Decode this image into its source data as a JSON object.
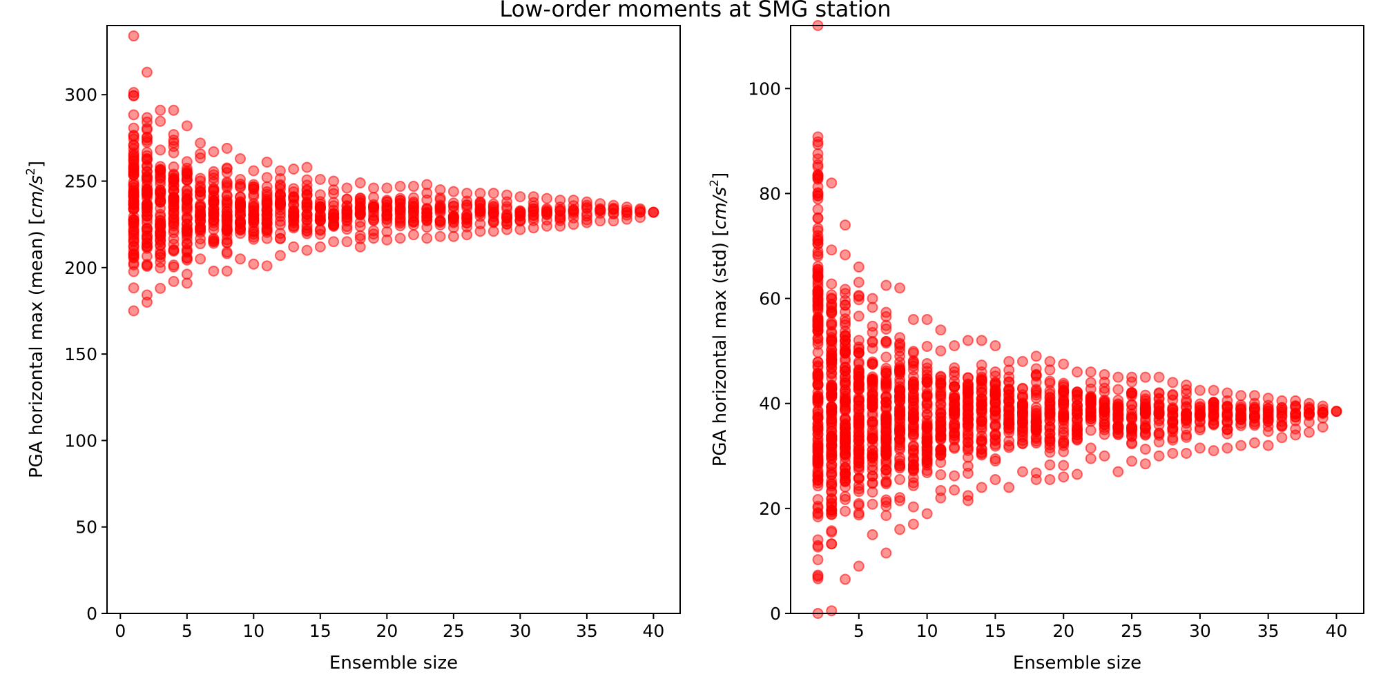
{
  "figure": {
    "title": "Low-order moments at SMG station",
    "colors": {
      "marker": "#ff0000",
      "axes": "#000000",
      "background": "#ffffff"
    }
  },
  "chart_data": [
    {
      "type": "scatter",
      "title": "",
      "xlabel": "Ensemble size",
      "ylabel": "PGA horizontal max (mean) [cm/s²]",
      "ylabel_parts": {
        "main": "PGA horizontal max (mean) [",
        "unit": "cm/s",
        "sup": "2",
        "close": "]"
      },
      "xlim": [
        -1,
        42
      ],
      "ylim": [
        0,
        340
      ],
      "x_ticks": [
        0,
        5,
        10,
        15,
        20,
        25,
        30,
        35,
        40
      ],
      "x_tick_labels": [
        "0",
        "5",
        "10",
        "15",
        "20",
        "25",
        "30",
        "35",
        "40"
      ],
      "y_ticks": [
        0,
        50,
        100,
        150,
        200,
        250,
        300
      ],
      "y_tick_labels": [
        "0",
        "50",
        "100",
        "150",
        "200",
        "250",
        "300"
      ],
      "grid": false,
      "legend": "none",
      "series": [
        {
          "marker_color": "#ff0000",
          "marker_alpha": 0.45,
          "x_range": [
            1,
            40
          ],
          "center": 232,
          "spread_by_x": [
            [
              1,
              175,
              334
            ],
            [
              2,
              180,
              313
            ],
            [
              3,
              188,
              291
            ],
            [
              4,
              192,
              291
            ],
            [
              5,
              191,
              282
            ],
            [
              6,
              205,
              272
            ],
            [
              7,
              198,
              267
            ],
            [
              8,
              198,
              269
            ],
            [
              9,
              205,
              263
            ],
            [
              10,
              202,
              256
            ],
            [
              11,
              201,
              261
            ],
            [
              12,
              207,
              256
            ],
            [
              13,
              212,
              257
            ],
            [
              14,
              210,
              258
            ],
            [
              15,
              212,
              251
            ],
            [
              16,
              215,
              250
            ],
            [
              17,
              215,
              246
            ],
            [
              18,
              212,
              249
            ],
            [
              19,
              217,
              246
            ],
            [
              20,
              216,
              246
            ],
            [
              21,
              217,
              247
            ],
            [
              22,
              219,
              247
            ],
            [
              23,
              217,
              248
            ],
            [
              24,
              218,
              245
            ],
            [
              25,
              218,
              244
            ],
            [
              26,
              219,
              243
            ],
            [
              27,
              221,
              243
            ],
            [
              28,
              221,
              243
            ],
            [
              29,
              222,
              242
            ],
            [
              30,
              222,
              241
            ],
            [
              31,
              223,
              241
            ],
            [
              32,
              224,
              240
            ],
            [
              33,
              224,
              239
            ],
            [
              34,
              225,
              239
            ],
            [
              35,
              226,
              238
            ],
            [
              36,
              227,
              237
            ],
            [
              37,
              227,
              236
            ],
            [
              38,
              228,
              235
            ],
            [
              39,
              229,
              234
            ],
            [
              40,
              232,
              232
            ]
          ]
        }
      ]
    },
    {
      "type": "scatter",
      "title": "",
      "xlabel": "Ensemble size",
      "ylabel": "PGA horizontal max (std) [cm/s²]",
      "ylabel_parts": {
        "main": "PGA horizontal max (std) [",
        "unit": "cm/s",
        "sup": "2",
        "close": "]"
      },
      "xlim": [
        0,
        42
      ],
      "ylim": [
        0,
        112
      ],
      "x_ticks": [
        5,
        10,
        15,
        20,
        25,
        30,
        35,
        40
      ],
      "x_tick_labels": [
        "5",
        "10",
        "15",
        "20",
        "25",
        "30",
        "35",
        "40"
      ],
      "y_ticks": [
        0,
        20,
        40,
        60,
        80,
        100
      ],
      "y_tick_labels": [
        "0",
        "20",
        "40",
        "60",
        "80",
        "100"
      ],
      "grid": false,
      "legend": "none",
      "series": [
        {
          "marker_color": "#ff0000",
          "marker_alpha": 0.45,
          "x_range": [
            2,
            40
          ],
          "center": 38.5,
          "spread_by_x": [
            [
              2,
              0,
              112
            ],
            [
              3,
              0.5,
              82
            ],
            [
              4,
              6.5,
              74
            ],
            [
              5,
              9,
              66
            ],
            [
              6,
              15,
              60
            ],
            [
              7,
              11.5,
              62.5
            ],
            [
              8,
              16,
              62
            ],
            [
              9,
              17,
              56
            ],
            [
              10,
              19,
              56
            ],
            [
              11,
              22,
              54
            ],
            [
              12,
              23.5,
              51
            ],
            [
              13,
              21.5,
              52
            ],
            [
              14,
              24,
              52
            ],
            [
              15,
              25.5,
              51
            ],
            [
              16,
              24,
              48
            ],
            [
              17,
              27,
              48
            ],
            [
              18,
              25.5,
              49
            ],
            [
              19,
              25.5,
              48
            ],
            [
              20,
              26,
              47.5
            ],
            [
              21,
              26.5,
              46
            ],
            [
              22,
              29.5,
              46
            ],
            [
              23,
              30,
              45.5
            ],
            [
              24,
              27,
              45
            ],
            [
              25,
              29,
              45
            ],
            [
              26,
              28.5,
              45
            ],
            [
              27,
              30,
              45
            ],
            [
              28,
              30.5,
              44
            ],
            [
              29,
              30.5,
              43.5
            ],
            [
              30,
              31.5,
              42.5
            ],
            [
              31,
              31,
              42.5
            ],
            [
              32,
              31.5,
              42
            ],
            [
              33,
              32,
              41.5
            ],
            [
              34,
              32.5,
              41.5
            ],
            [
              35,
              32,
              41
            ],
            [
              36,
              33.5,
              40.5
            ],
            [
              37,
              34,
              40.5
            ],
            [
              38,
              34.5,
              40
            ],
            [
              39,
              35.5,
              39.5
            ],
            [
              40,
              38.5,
              38.5
            ]
          ]
        }
      ]
    }
  ]
}
